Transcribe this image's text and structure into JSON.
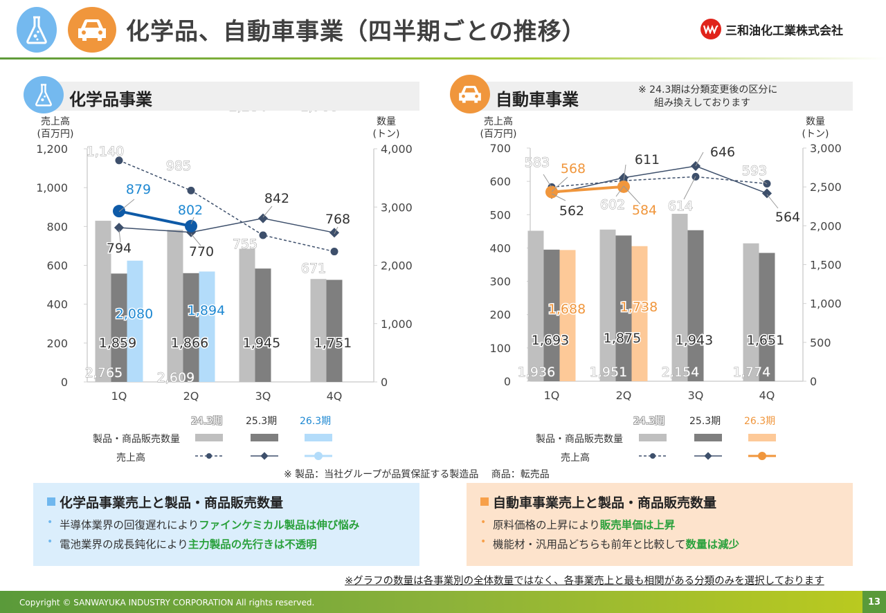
{
  "header": {
    "title": "化学品、自動車事業（四半期ごとの推移）",
    "company": "三和油化工業株式会社",
    "logo_mark": "ѠѠ"
  },
  "chemical": {
    "section_title": "化学品事業",
    "icon": "flask-icon",
    "accent": "#1e88d2"
  },
  "auto": {
    "section_title": "自動車事業",
    "icon": "car-icon",
    "accent": "#f0963c",
    "note_line1": "※ 24.3期は分類変更後の区分に",
    "note_line2": "組み換えしております"
  },
  "legend": {
    "quantity_label": "製品・商品販売数量",
    "sales_label": "売上高",
    "periods": [
      "24.3期",
      "25.3期",
      "26.3期"
    ]
  },
  "definition_note": "※ 製品：当社グループが品質保証する製造品　 商品：転売品",
  "summaries": {
    "chemical": {
      "title": "化学品事業売上と製品・商品販売数量",
      "bullets": [
        {
          "text": "半導体業界の回復遅れにより",
          "highlight": "ファインケミカル製品は伸び悩み"
        },
        {
          "text": "電池業界の成長鈍化により",
          "highlight": "主力製品の先行きは不透明"
        }
      ]
    },
    "auto": {
      "title": "自動車事業売上と製品・商品販売数量",
      "bullets": [
        {
          "text": "原料価格の上昇により",
          "highlight": "販売単価は上昇"
        },
        {
          "text": "機能材・汎用品どちらも前年と比較して",
          "highlight": "数量は減少"
        }
      ]
    }
  },
  "bottom_note": "※グラフの数量は各事業別の全体数量ではなく、各事業売上と最も相関がある分類のみを選択しております",
  "footer": {
    "copyright": "Copyright © SANWAYUKA INDUSTRY CORPORATION All rights reserved.",
    "page": "13"
  },
  "chart_data": [
    {
      "type": "bar",
      "title": "化学品事業",
      "categories": [
        "1Q",
        "2Q",
        "3Q",
        "4Q"
      ],
      "ylabel": "売上高\n(百万円)",
      "y2label": "数量\n(トン)",
      "ylim": [
        0,
        1200
      ],
      "yticks": [
        "0",
        "200",
        "400",
        "600",
        "800",
        "1,000",
        "1,200"
      ],
      "y2lim": [
        0,
        4000
      ],
      "y2ticks": [
        "0",
        "1,000",
        "2,000",
        "3,000",
        "4,000"
      ],
      "bar_series": [
        {
          "name": "24.3期 製品・商品販売数量",
          "axis": "right",
          "color": "#bfbfbf",
          "values": [
            2765,
            2609,
            2284,
            1766
          ],
          "labels": [
            "2,765",
            "2,609",
            "2,284",
            "1,766"
          ]
        },
        {
          "name": "25.3期 製品・商品販売数量",
          "axis": "right",
          "color": "#7f7f7f",
          "values": [
            1859,
            1866,
            1945,
            1751
          ],
          "labels": [
            "1,859",
            "1,866",
            "1,945",
            "1,751"
          ]
        },
        {
          "name": "26.3期 製品・商品販売数量",
          "axis": "right",
          "color": "#b3dcfa",
          "values": [
            2080,
            1894,
            null,
            null
          ],
          "labels": [
            "2,080",
            "1,894",
            "",
            ""
          ]
        }
      ],
      "line_series": [
        {
          "name": "24.3期 売上高",
          "axis": "left",
          "style": "dashed-circle",
          "color": "#3d4f6b",
          "values": [
            1140,
            985,
            755,
            671
          ],
          "labels": [
            "1,140",
            "985",
            "755",
            "671"
          ]
        },
        {
          "name": "25.3期 売上高",
          "axis": "left",
          "style": "solid-diamond",
          "color": "#3d4f6b",
          "values": [
            794,
            770,
            842,
            768
          ],
          "labels": [
            "794",
            "770",
            "842",
            "768"
          ]
        },
        {
          "name": "26.3期 売上高",
          "axis": "left",
          "style": "thick-circle",
          "color": "#0e5aa7",
          "values": [
            879,
            802,
            null,
            null
          ],
          "labels": [
            "879",
            "802",
            "",
            ""
          ]
        }
      ]
    },
    {
      "type": "bar",
      "title": "自動車事業",
      "categories": [
        "1Q",
        "2Q",
        "3Q",
        "4Q"
      ],
      "ylabel": "売上高\n(百万円)",
      "y2label": "数量\n(トン)",
      "ylim": [
        0,
        700
      ],
      "yticks": [
        "0",
        "100",
        "200",
        "300",
        "400",
        "500",
        "600",
        "700"
      ],
      "y2lim": [
        0,
        3000
      ],
      "y2ticks": [
        "0",
        "500",
        "1,000",
        "1,500",
        "2,000",
        "2,500",
        "3,000"
      ],
      "bar_series": [
        {
          "name": "24.3期 製品・商品販売数量",
          "axis": "right",
          "color": "#bfbfbf",
          "values": [
            1936,
            1951,
            2154,
            1774
          ],
          "labels": [
            "1,936",
            "1,951",
            "2,154",
            "1,774"
          ]
        },
        {
          "name": "25.3期 製品・商品販売数量",
          "axis": "right",
          "color": "#7f7f7f",
          "values": [
            1693,
            1875,
            1943,
            1651
          ],
          "labels": [
            "1,693",
            "1,875",
            "1,943",
            "1,651"
          ]
        },
        {
          "name": "26.3期 製品・商品販売数量",
          "axis": "right",
          "color": "#fdc998",
          "values": [
            1688,
            1738,
            null,
            null
          ],
          "labels": [
            "1,688",
            "1,738",
            "",
            ""
          ]
        }
      ],
      "line_series": [
        {
          "name": "24.3期 売上高",
          "axis": "left",
          "style": "dashed-circle",
          "color": "#3d4f6b",
          "values": [
            583,
            602,
            614,
            593
          ],
          "labels": [
            "583",
            "602",
            "614",
            "593"
          ]
        },
        {
          "name": "25.3期 売上高",
          "axis": "left",
          "style": "solid-diamond",
          "color": "#3d4f6b",
          "values": [
            562,
            611,
            646,
            564
          ],
          "labels": [
            "562",
            "611",
            "646",
            "564"
          ]
        },
        {
          "name": "26.3期 売上高",
          "axis": "left",
          "style": "thick-circle",
          "color": "#f0963c",
          "values": [
            568,
            584,
            null,
            null
          ],
          "labels": [
            "568",
            "584",
            "",
            ""
          ]
        }
      ]
    }
  ]
}
